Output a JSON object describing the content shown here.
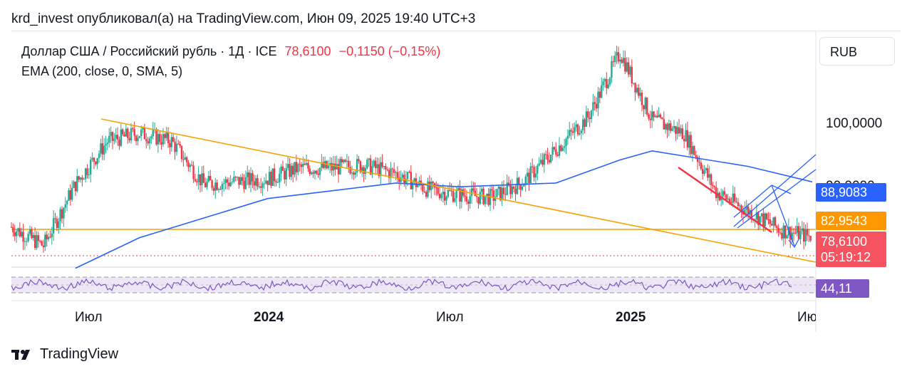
{
  "header": {
    "caption": "krd_invest опубликовал(а) на TradingView.com, Июн 09, 2025 19:40 UTC+3"
  },
  "legend": {
    "symbol_text": "Доллар США / Российский рубль · 1Д · ICE",
    "last_price": "78,6100",
    "change": "−0,1150 (−0,15%)",
    "indicator": "EMA (200, close, 0, SMA, 5)"
  },
  "toolbar": {
    "currency_button": "RUB"
  },
  "price_axis": {
    "tick_100": "100,0000",
    "tick_90_partial": "90,0000",
    "ema_badge": "88,9083",
    "level_badge": "82,9543",
    "last_badge_price": "78,6100",
    "last_badge_timer": "05:19:12",
    "rsi_badge": "44,11"
  },
  "time_axis": {
    "labels": [
      "Июл",
      "2024",
      "Июл",
      "2025",
      "Ию"
    ]
  },
  "footer": {
    "brand": "TradingView"
  },
  "colors": {
    "up": "#22ab94",
    "down": "#f23645",
    "ema": "#2962ff",
    "trendline": "#f4a405",
    "rsi": "#7e57c2",
    "rsi_band": "#ede7f6",
    "ema_badge": "#2962ff",
    "level_badge": "#ff9800",
    "last_badge": "#f7525f",
    "rsi_badge": "#7e57c2"
  },
  "chart_data": {
    "type": "candlestick",
    "symbol": "USDRUB",
    "interval": "1D",
    "xlim": [
      "2023-05",
      "2025-06"
    ],
    "ylim": [
      73,
      117
    ],
    "y_ticks": [
      100,
      90
    ],
    "close_series": {
      "x": [
        "2023-05",
        "2023-06",
        "2023-07",
        "2023-08",
        "2023-09",
        "2023-10",
        "2023-11",
        "2023-12",
        "2024-01",
        "2024-02",
        "2024-03",
        "2024-04",
        "2024-05",
        "2024-06",
        "2024-07",
        "2024-08",
        "2024-09",
        "2024-10",
        "2024-11",
        "2024-12",
        "2025-01",
        "2025-02",
        "2025-03",
        "2025-04",
        "2025-05",
        "2025-06"
      ],
      "y": [
        80.5,
        77.0,
        88.5,
        96.5,
        98.0,
        96.5,
        88.5,
        89.0,
        89.5,
        91.5,
        91.5,
        92.0,
        90.5,
        87.5,
        86.5,
        86.0,
        89.0,
        95.0,
        101.0,
        113.0,
        100.5,
        98.0,
        87.0,
        83.5,
        80.0,
        78.61
      ]
    },
    "ema_200": {
      "x": [
        "2023-07",
        "2023-09",
        "2024-01",
        "2024-05",
        "2024-07",
        "2024-10",
        "2024-12",
        "2025-01",
        "2025-04",
        "2025-06"
      ],
      "y": [
        72.8,
        78.5,
        85.8,
        88.7,
        88.0,
        88.7,
        93.0,
        94.7,
        91.8,
        88.9083
      ]
    },
    "horizontal_level": 82.9543,
    "last_price": 78.61,
    "trendline_descending": {
      "from": [
        "2023-08",
        98.5
      ],
      "to": [
        "2025-06",
        78.8
      ]
    },
    "annotation_short_downtrend": {
      "from": [
        "2025-02",
        91.4
      ],
      "to": [
        "2025-04",
        82.2
      ]
    },
    "rsi": {
      "last": 44.11
    }
  }
}
